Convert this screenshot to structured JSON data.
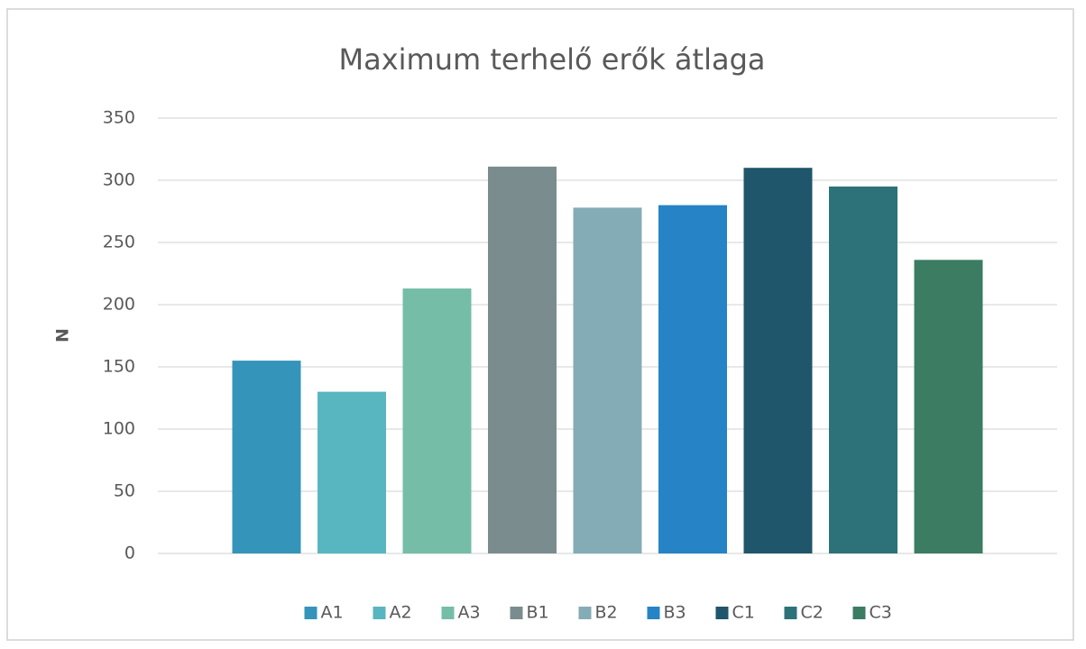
{
  "chart_data": {
    "type": "bar",
    "title": "Maximum terhelő erők átlaga",
    "y_label": "N",
    "series": [
      {
        "name": "A1",
        "color": "#3494ba",
        "values": [
          155
        ]
      },
      {
        "name": "A2",
        "color": "#58b6c0",
        "values": [
          130
        ]
      },
      {
        "name": "A3",
        "color": "#75bda7",
        "values": [
          213
        ]
      },
      {
        "name": "B1",
        "color": "#7a8c8e",
        "values": [
          311
        ]
      },
      {
        "name": "B2",
        "color": "#84acb6",
        "values": [
          278
        ]
      },
      {
        "name": "B3",
        "color": "#2683c6",
        "values": [
          280
        ]
      },
      {
        "name": "C1",
        "color": "#1f566c",
        "values": [
          310
        ]
      },
      {
        "name": "C2",
        "color": "#2d7279",
        "values": [
          295
        ]
      },
      {
        "name": "C3",
        "color": "#3b7c62",
        "values": [
          236
        ]
      }
    ],
    "ylim": [
      0,
      350
    ],
    "yticks": [
      0,
      50,
      100,
      150,
      200,
      250,
      300,
      350
    ],
    "grid": true,
    "legend": "bottom"
  }
}
